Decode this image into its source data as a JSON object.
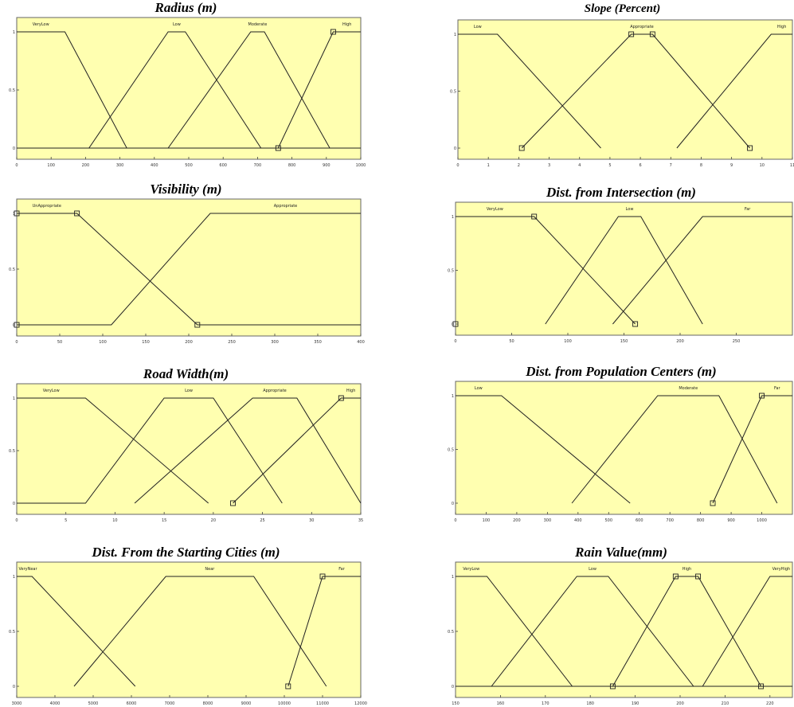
{
  "chart_data": [
    {
      "type": "line",
      "title": "Radius (m)",
      "xlim": [
        0,
        1000
      ],
      "ylim": [
        0,
        1
      ],
      "xticks": [
        0,
        100,
        200,
        300,
        400,
        500,
        600,
        700,
        800,
        900,
        1000
      ],
      "yticks": [
        0,
        0.5,
        1
      ],
      "series": [
        {
          "name": "VeryLow",
          "x": [
            0,
            140,
            320,
            1000
          ],
          "y": [
            1,
            1,
            0,
            0
          ]
        },
        {
          "name": "Low",
          "x": [
            0,
            210,
            440,
            490,
            710,
            1000
          ],
          "y": [
            0,
            0,
            1,
            1,
            0,
            0
          ]
        },
        {
          "name": "Moderate",
          "x": [
            0,
            440,
            680,
            720,
            910,
            1000
          ],
          "y": [
            0,
            0,
            1,
            1,
            0,
            0
          ]
        },
        {
          "name": "High",
          "x": [
            0,
            760,
            920,
            1000
          ],
          "y": [
            0,
            0,
            1,
            1
          ]
        }
      ],
      "markers": [
        {
          "x": 760,
          "y": 0
        },
        {
          "x": 920,
          "y": 1
        }
      ]
    },
    {
      "type": "line",
      "title": "Slope (Percent)",
      "xlim": [
        0,
        11
      ],
      "ylim": [
        0,
        1
      ],
      "xticks": [
        0,
        1,
        2,
        3,
        4,
        5,
        6,
        7,
        8,
        9,
        10,
        11
      ],
      "yticks": [
        0,
        0.5,
        1
      ],
      "series": [
        {
          "name": "Low",
          "x": [
            0,
            1.3,
            4.7
          ],
          "y": [
            1,
            1,
            0
          ]
        },
        {
          "name": "Appropriate",
          "x": [
            2.1,
            5.7,
            6.4,
            9.6
          ],
          "y": [
            0,
            1,
            1,
            0
          ]
        },
        {
          "name": "High",
          "x": [
            7.2,
            10.3,
            11
          ],
          "y": [
            0,
            1,
            1
          ]
        }
      ],
      "markers": [
        {
          "x": 2.1,
          "y": 0
        },
        {
          "x": 5.7,
          "y": 1
        },
        {
          "x": 6.4,
          "y": 1
        },
        {
          "x": 9.6,
          "y": 0
        }
      ]
    },
    {
      "type": "line",
      "title": "Visibility (m)",
      "xlim": [
        0,
        400
      ],
      "ylim": [
        0,
        1
      ],
      "xticks": [
        0,
        50,
        100,
        150,
        200,
        250,
        300,
        350,
        400
      ],
      "yticks": [
        0,
        0.5,
        1
      ],
      "series": [
        {
          "name": "UnAppropriate",
          "x": [
            0,
            70,
            210,
            400
          ],
          "y": [
            1,
            1,
            0,
            0
          ]
        },
        {
          "name": "Appropriate",
          "x": [
            0,
            110,
            225,
            400
          ],
          "y": [
            0,
            0,
            1,
            1
          ]
        }
      ],
      "markers": [
        {
          "x": 70,
          "y": 1
        },
        {
          "x": 210,
          "y": 0
        },
        {
          "x": 0,
          "y": 0
        },
        {
          "x": 0,
          "y": 1
        }
      ]
    },
    {
      "type": "line",
      "title": "Dist. from Intersection (m)",
      "xlim": [
        0,
        300
      ],
      "ylim": [
        0,
        1
      ],
      "xticks": [
        0,
        50,
        100,
        150,
        200,
        250
      ],
      "yticks": [
        0,
        0.5,
        1
      ],
      "series": [
        {
          "name": "VeryLow",
          "x": [
            0,
            70,
            160
          ],
          "y": [
            1,
            1,
            0
          ]
        },
        {
          "name": "Low",
          "x": [
            80,
            145,
            165,
            220
          ],
          "y": [
            0,
            1,
            1,
            0
          ]
        },
        {
          "name": "Far",
          "x": [
            140,
            220,
            300
          ],
          "y": [
            0,
            1,
            1
          ]
        }
      ],
      "markers": [
        {
          "x": 70,
          "y": 1
        },
        {
          "x": 160,
          "y": 0
        },
        {
          "x": 0,
          "y": 0
        }
      ]
    },
    {
      "type": "line",
      "title": "Road Width(m)",
      "xlim": [
        0,
        35
      ],
      "ylim": [
        0,
        1
      ],
      "xticks": [
        0,
        5,
        10,
        15,
        20,
        25,
        30,
        35
      ],
      "yticks": [
        0,
        0.5,
        1
      ],
      "series": [
        {
          "name": "VeryLow",
          "x": [
            0,
            7,
            19.5
          ],
          "y": [
            1,
            1,
            0
          ]
        },
        {
          "name": "Low",
          "x": [
            0,
            7,
            15,
            20,
            27
          ],
          "y": [
            0,
            0,
            1,
            1,
            0
          ]
        },
        {
          "name": "Appropriate",
          "x": [
            12,
            24,
            28.5,
            35
          ],
          "y": [
            0,
            1,
            1,
            0
          ]
        },
        {
          "name": "High",
          "x": [
            22,
            33,
            35
          ],
          "y": [
            0,
            1,
            1
          ]
        }
      ],
      "markers": [
        {
          "x": 22,
          "y": 0
        },
        {
          "x": 33,
          "y": 1
        }
      ]
    },
    {
      "type": "line",
      "title": "Dist. from Population Centers (m)",
      "xlim": [
        0,
        1100
      ],
      "ylim": [
        0,
        1
      ],
      "xticks": [
        0,
        100,
        200,
        300,
        400,
        500,
        600,
        700,
        800,
        900,
        1000
      ],
      "yticks": [
        0,
        0.5,
        1
      ],
      "series": [
        {
          "name": "Low",
          "x": [
            0,
            150,
            570
          ],
          "y": [
            1,
            1,
            0
          ]
        },
        {
          "name": "Moderate",
          "x": [
            380,
            660,
            860,
            1050
          ],
          "y": [
            0,
            1,
            1,
            0
          ]
        },
        {
          "name": "Far",
          "x": [
            840,
            1000,
            1100
          ],
          "y": [
            0,
            1,
            1
          ]
        }
      ],
      "markers": [
        {
          "x": 840,
          "y": 0
        },
        {
          "x": 1000,
          "y": 1
        }
      ]
    },
    {
      "type": "line",
      "title": "Dist. From the Starting Cities (m)",
      "xlim": [
        3000,
        12000
      ],
      "ylim": [
        0,
        1
      ],
      "xticks": [
        3000,
        4000,
        5000,
        6000,
        7000,
        8000,
        9000,
        10000,
        11000,
        12000
      ],
      "yticks": [
        0,
        0.5,
        1
      ],
      "series": [
        {
          "name": "VeryNear",
          "x": [
            3000,
            3400,
            6100
          ],
          "y": [
            1,
            1,
            0
          ]
        },
        {
          "name": "Near",
          "x": [
            4500,
            6900,
            9200,
            11100
          ],
          "y": [
            0,
            1,
            1,
            0
          ]
        },
        {
          "name": "Far",
          "x": [
            10100,
            11000,
            12000
          ],
          "y": [
            0,
            1,
            1
          ]
        }
      ],
      "markers": [
        {
          "x": 10100,
          "y": 0
        },
        {
          "x": 11000,
          "y": 1
        }
      ]
    },
    {
      "type": "line",
      "title": "Rain Value(mm)",
      "xlim": [
        150,
        225
      ],
      "ylim": [
        0,
        1
      ],
      "xticks": [
        150,
        160,
        170,
        180,
        190,
        200,
        210,
        220
      ],
      "yticks": [
        0,
        0.5,
        1
      ],
      "series": [
        {
          "name": "VeryLow",
          "x": [
            150,
            157,
            176,
            225
          ],
          "y": [
            1,
            1,
            0,
            0
          ]
        },
        {
          "name": "Low",
          "x": [
            150,
            158,
            177,
            184,
            203,
            225
          ],
          "y": [
            0,
            0,
            1,
            1,
            0,
            0
          ]
        },
        {
          "name": "High",
          "x": [
            150,
            185,
            199,
            204,
            218,
            225
          ],
          "y": [
            0,
            0,
            1,
            1,
            0,
            0
          ]
        },
        {
          "name": "VeryHigh",
          "x": [
            150,
            205,
            220,
            225
          ],
          "y": [
            0,
            0,
            1,
            1
          ]
        }
      ],
      "markers": [
        {
          "x": 185,
          "y": 0
        },
        {
          "x": 199,
          "y": 1
        },
        {
          "x": 204,
          "y": 1
        },
        {
          "x": 218,
          "y": 0
        }
      ]
    }
  ],
  "style": {
    "plot_bg": "#ffffb0",
    "line_color": "#222222"
  }
}
